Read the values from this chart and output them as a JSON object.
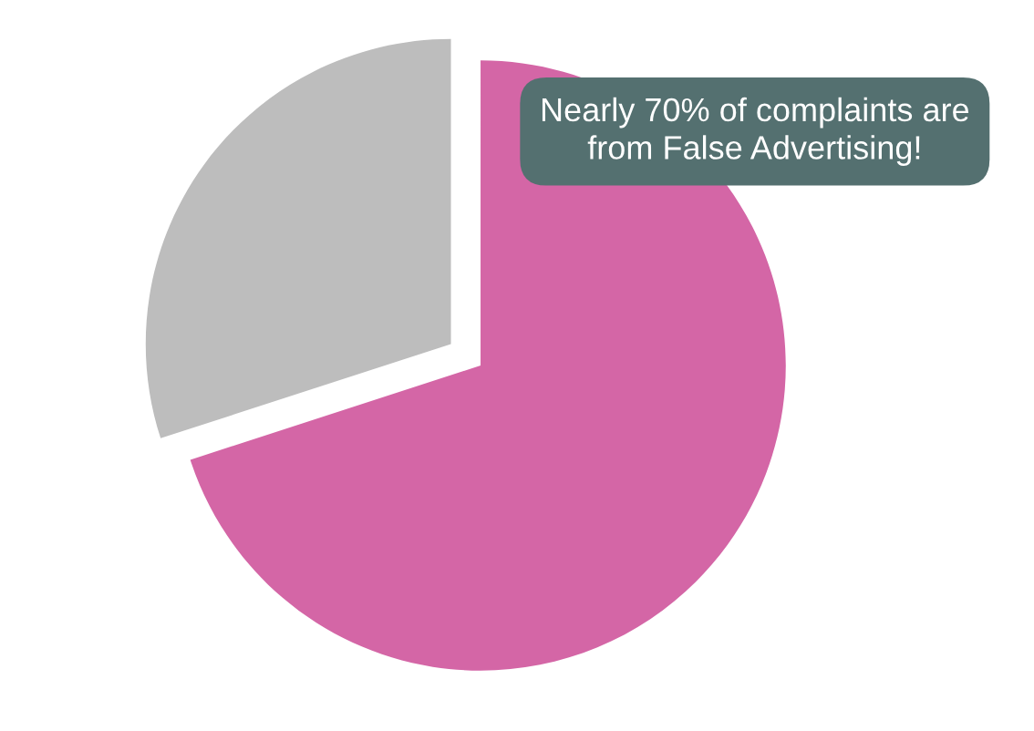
{
  "chart_data": {
    "type": "pie",
    "categories": [
      null,
      null
    ],
    "values": [
      70,
      30
    ],
    "colors": [
      "#d466a6",
      "#bdbdbd"
    ],
    "annotations": [
      "Nearly 70% of complaints are from False Advertising!"
    ]
  }
}
